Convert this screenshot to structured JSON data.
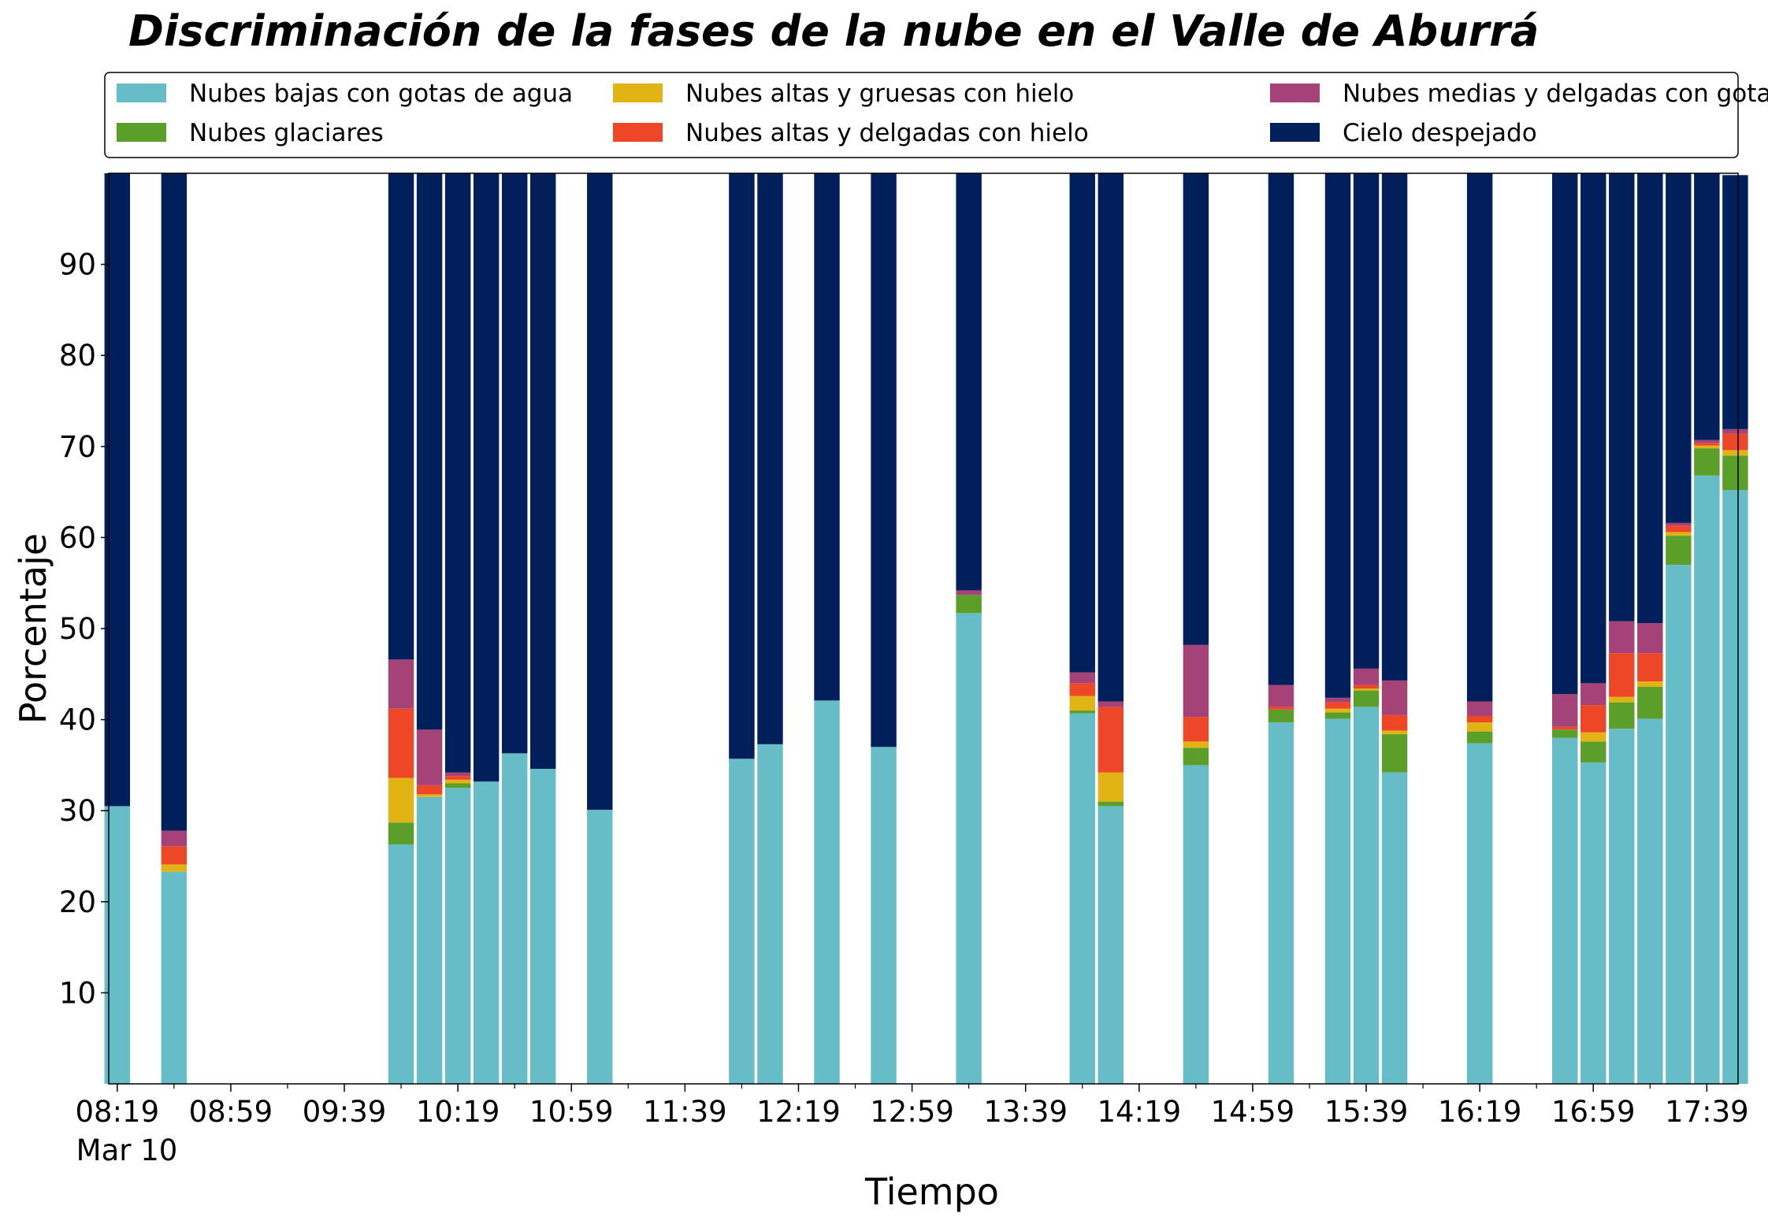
{
  "chart_data": {
    "type": "bar",
    "stacked": true,
    "title": "Discriminación de la fases de la nube en el Valle de Aburrá",
    "xlabel": "Tiempo",
    "ylabel": "Porcentaje",
    "ylim": [
      0,
      100
    ],
    "yticks": [
      10,
      20,
      30,
      40,
      50,
      60,
      70,
      80,
      90
    ],
    "x_unit": "minutes",
    "xlim": [
      "08:16",
      "17:50"
    ],
    "xticks": [
      "08:19",
      "08:59",
      "09:39",
      "10:19",
      "10:59",
      "11:39",
      "12:19",
      "12:59",
      "13:39",
      "14:19",
      "14:59",
      "15:39",
      "16:19",
      "16:59",
      "17:39"
    ],
    "xdate_label": "Mar 10",
    "legend_position": "top",
    "bar_width_minutes": 9,
    "x": [
      "08:19",
      "08:39",
      "09:59",
      "10:09",
      "10:19",
      "10:29",
      "10:39",
      "10:49",
      "11:09",
      "11:59",
      "12:09",
      "12:29",
      "12:49",
      "13:19",
      "13:59",
      "14:09",
      "14:39",
      "15:09",
      "15:29",
      "15:39",
      "15:49",
      "16:19",
      "16:49",
      "16:59",
      "17:09",
      "17:19",
      "17:29",
      "17:39",
      "17:49"
    ],
    "series": [
      {
        "name": "Nubes bajas con gotas de agua",
        "color": "#66bdc8",
        "values": [
          30.5,
          23.3,
          26.3,
          31.5,
          32.5,
          33.2,
          36.3,
          34.6,
          30.1,
          35.7,
          37.3,
          42.1,
          37.0,
          51.7,
          40.7,
          30.5,
          35.0,
          39.7,
          40.1,
          41.4,
          34.2,
          37.4,
          38.0,
          35.3,
          39.0,
          40.1,
          57.0,
          66.8,
          65.2
        ]
      },
      {
        "name": "Nubes glaciares",
        "color": "#5b9f2a",
        "values": [
          0,
          0,
          2.4,
          0,
          0.5,
          0,
          0,
          0,
          0,
          0,
          0,
          0,
          0,
          2.0,
          0.3,
          0.5,
          1.9,
          1.4,
          0.7,
          1.8,
          4.2,
          1.3,
          0.9,
          2.3,
          2.9,
          3.5,
          3.2,
          3.0,
          3.8
        ]
      },
      {
        "name": "Nubes altas y gruesas con hielo",
        "color": "#e2b315",
        "values": [
          0,
          0.8,
          4.9,
          0.3,
          0.4,
          0,
          0,
          0,
          0,
          0,
          0,
          0,
          0,
          0,
          1.6,
          3.2,
          0.7,
          0,
          0.4,
          0.2,
          0.4,
          1.0,
          0,
          1.0,
          0.6,
          0.6,
          0.4,
          0.3,
          0.6
        ]
      },
      {
        "name": "Nubes altas y delgadas con hielo",
        "color": "#ee4728",
        "values": [
          0,
          2.0,
          7.6,
          1.0,
          0.4,
          0,
          0,
          0,
          0,
          0,
          0,
          0,
          0,
          0,
          1.4,
          7.2,
          2.7,
          0.3,
          0.7,
          0.4,
          1.7,
          0.7,
          0.3,
          3.0,
          4.8,
          3.1,
          0.7,
          0.3,
          1.8
        ]
      },
      {
        "name": "Nubes medias y delgadas con gotas de agua",
        "color": "#a54277",
        "values": [
          0,
          1.7,
          5.4,
          6.1,
          0.4,
          0,
          0,
          0,
          0,
          0,
          0,
          0,
          0,
          0.5,
          1.2,
          0.6,
          7.9,
          2.4,
          0.5,
          1.8,
          3.8,
          1.6,
          3.6,
          2.4,
          3.5,
          3.3,
          0.3,
          0.3,
          0.5
        ]
      },
      {
        "name": "Cielo despejado",
        "color": "#001f5b",
        "values": [
          69.5,
          72.2,
          53.4,
          61.1,
          65.8,
          66.8,
          63.7,
          65.4,
          69.9,
          64.3,
          62.7,
          57.9,
          63.0,
          45.8,
          54.8,
          58.0,
          51.8,
          56.2,
          57.6,
          54.4,
          55.7,
          58.0,
          57.2,
          56.0,
          49.2,
          49.4,
          38.4,
          29.3,
          27.9
        ]
      }
    ]
  }
}
